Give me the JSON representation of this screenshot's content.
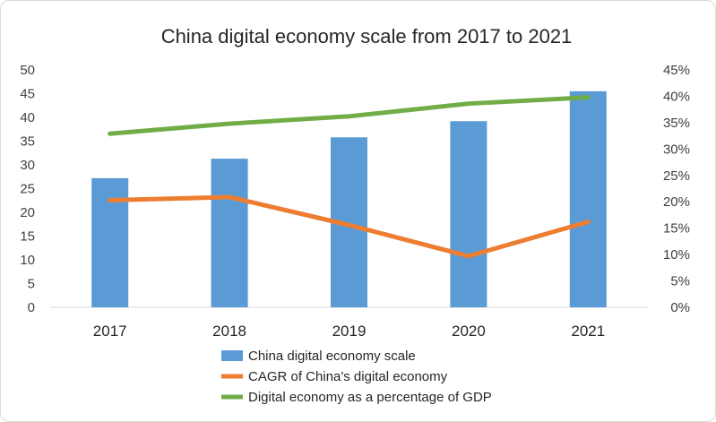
{
  "chart_data": {
    "type": "bar",
    "title": "China digital economy scale from 2017 to 2021",
    "categories": [
      "2017",
      "2018",
      "2019",
      "2020",
      "2021"
    ],
    "series": [
      {
        "name": "China digital economy scale",
        "type": "bar",
        "axis": "left",
        "color": "#5b9bd5",
        "values": [
          27.2,
          31.3,
          35.8,
          39.2,
          45.5
        ]
      },
      {
        "name": "CAGR of China's digital economy",
        "type": "line",
        "axis": "right",
        "color": "#ed7d31",
        "values": [
          20.3,
          20.9,
          15.6,
          9.7,
          16.2
        ]
      },
      {
        "name": "Digital economy as a percentage of GDP",
        "type": "line",
        "axis": "right",
        "color": "#70ad47",
        "values": [
          32.9,
          34.8,
          36.2,
          38.6,
          39.8
        ]
      }
    ],
    "y_left": {
      "ylim": [
        0,
        50
      ],
      "ticks": [
        "50",
        "45",
        "40",
        "35",
        "30",
        "25",
        "20",
        "15",
        "10",
        "5",
        "0"
      ]
    },
    "y_right": {
      "ylim": [
        0,
        45
      ],
      "ticks": [
        "45%",
        "40%",
        "35%",
        "30%",
        "25%",
        "20%",
        "15%",
        "10%",
        "5%",
        "0%"
      ]
    },
    "grid": false,
    "legend_position": "bottom"
  }
}
